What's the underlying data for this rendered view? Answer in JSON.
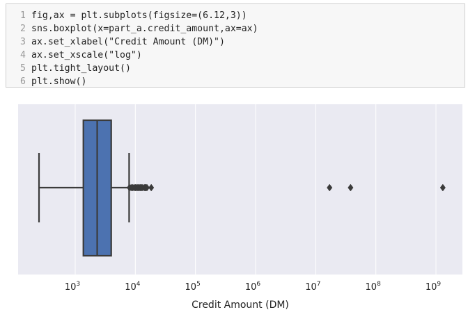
{
  "code_cell": {
    "lines": [
      {
        "num": "1",
        "text": "fig,ax = plt.subplots(figsize=(6.12,3))"
      },
      {
        "num": "2",
        "text": "sns.boxplot(x=part_a.credit_amount,ax=ax)"
      },
      {
        "num": "3",
        "text": "ax.set_xlabel(\"Credit Amount (DM)\")"
      },
      {
        "num": "4",
        "text": "ax.set_xscale(\"log\")"
      },
      {
        "num": "5",
        "text": "plt.tight_layout()"
      },
      {
        "num": "6",
        "text": "plt.show()"
      }
    ]
  },
  "chart_data": {
    "type": "box",
    "xlabel": "Credit Amount (DM)",
    "xscale": "log",
    "xlim": [
      130,
      2000000000
    ],
    "grid": true,
    "colors": {
      "box": "#4c72b0",
      "background": "#eaeaf2",
      "grid": "#ffffff",
      "line": "#3b3b3b"
    },
    "tick_labels": [
      {
        "value": 1000,
        "base": "10",
        "exp": "3"
      },
      {
        "value": 10000,
        "base": "10",
        "exp": "4"
      },
      {
        "value": 100000,
        "base": "10",
        "exp": "5"
      },
      {
        "value": 1000000,
        "base": "10",
        "exp": "6"
      },
      {
        "value": 10000000,
        "base": "10",
        "exp": "7"
      },
      {
        "value": 100000000,
        "base": "10",
        "exp": "8"
      },
      {
        "value": 1000000000,
        "base": "10",
        "exp": "9"
      }
    ],
    "box": {
      "whisker_low": 250,
      "q1": 1366,
      "median": 2320,
      "q3": 3972,
      "whisker_high": 7882
    },
    "outliers": [
      8000,
      8500,
      9000,
      9500,
      10000,
      10500,
      11000,
      11500,
      12000,
      12500,
      13000,
      14000,
      14500,
      15000,
      15600,
      18400,
      17000000,
      38000000,
      1300000000
    ]
  }
}
